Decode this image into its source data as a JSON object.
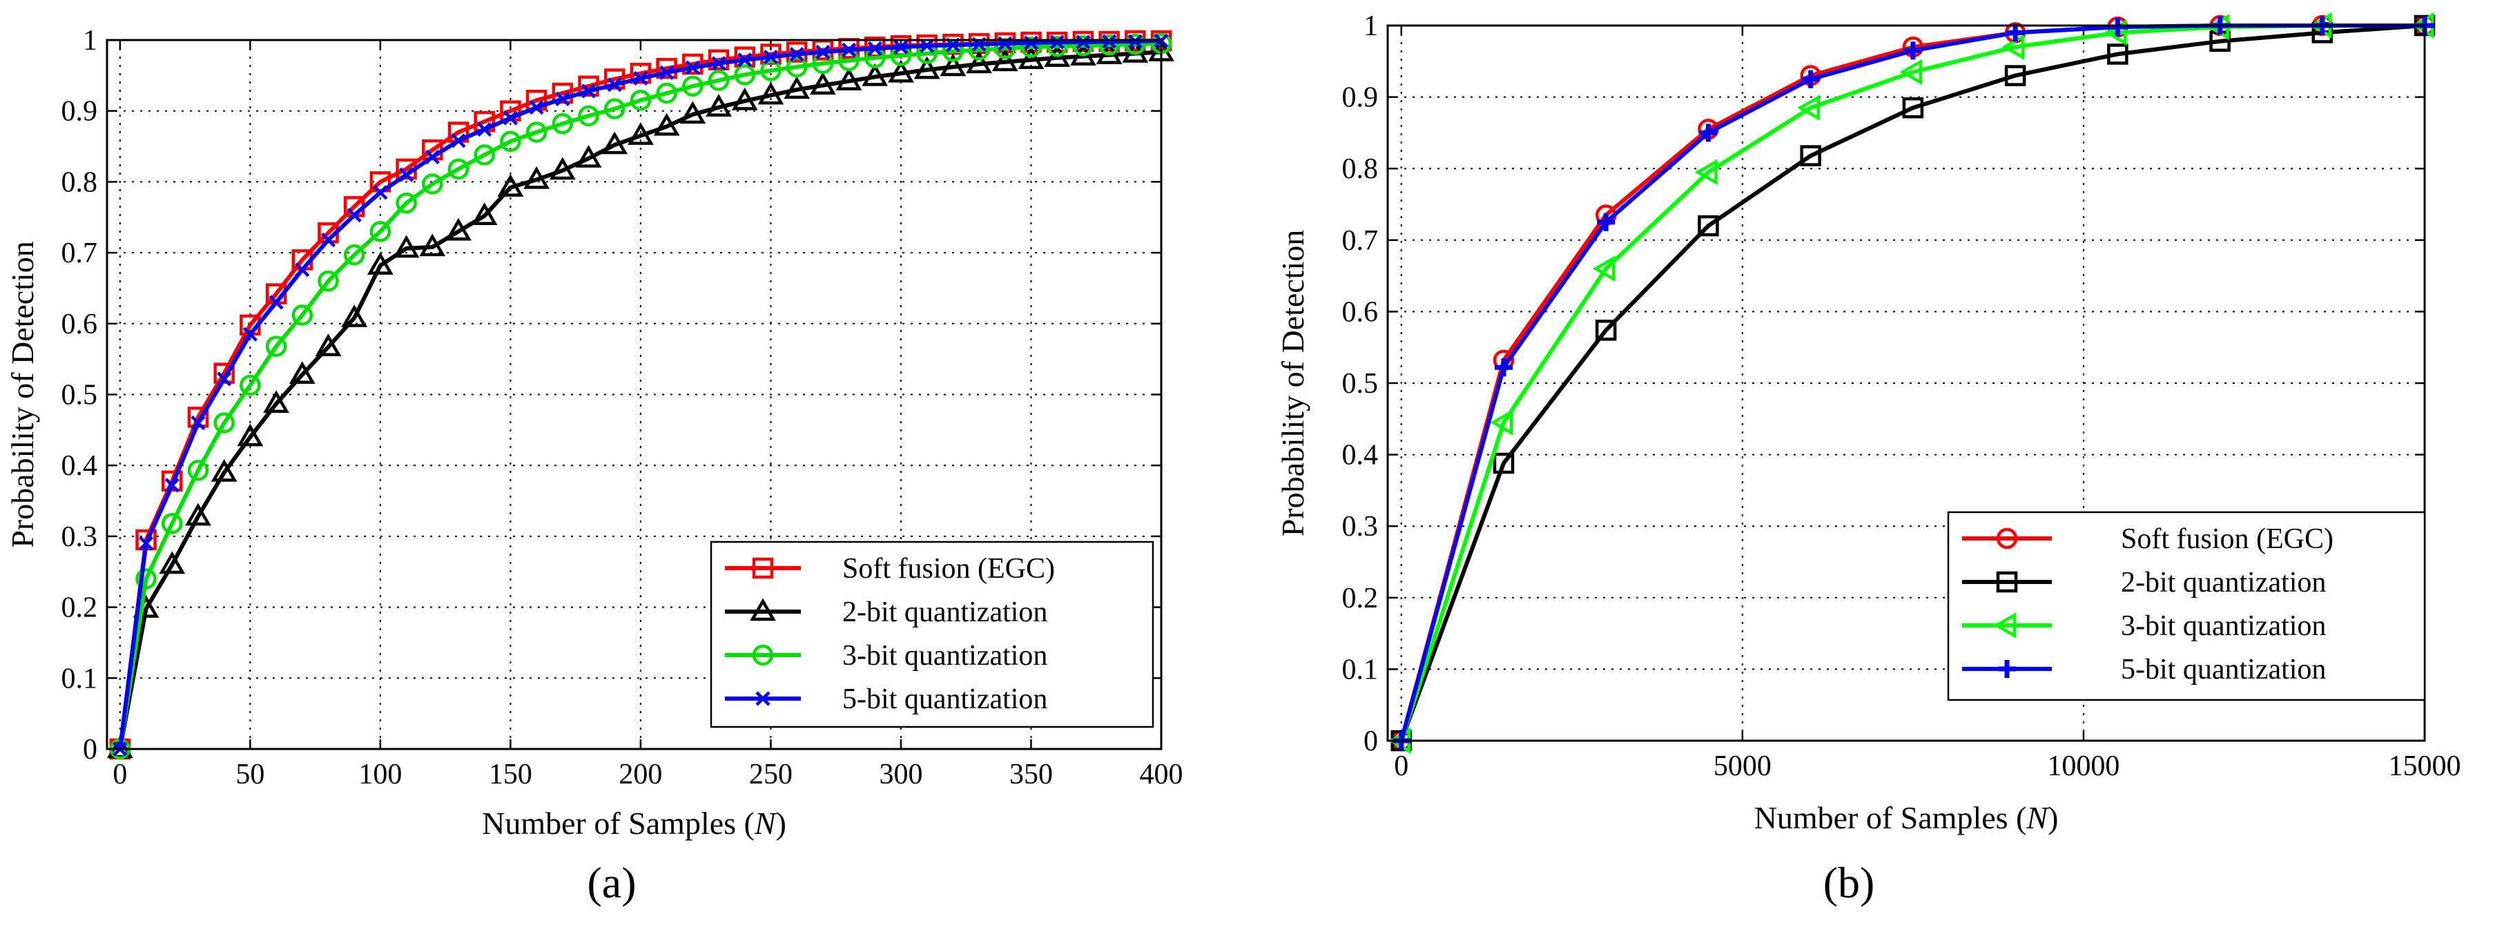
{
  "chart_data": [
    {
      "type": "line",
      "panel_label": "(a)",
      "xlabel_prefix": "Number of Samples (",
      "xlabel_var": "N",
      "xlabel_suffix": ")",
      "ylabel": "Probability of Detection",
      "xlim": [
        -5,
        400
      ],
      "ylim": [
        0,
        1
      ],
      "xticks": [
        0,
        50,
        100,
        150,
        200,
        250,
        300,
        350,
        400
      ],
      "yticks": [
        0,
        0.1,
        0.2,
        0.3,
        0.4,
        0.5,
        0.6,
        0.7,
        0.8,
        0.9,
        1
      ],
      "ytick_labels": [
        "0",
        "0.1",
        "0.2",
        "0.3",
        "0.4",
        "0.5",
        "0.6",
        "0.7",
        "0.8",
        "0.9",
        "1"
      ],
      "grid": true,
      "legend_position": "bottom-right",
      "x": [
        0,
        10,
        20,
        30,
        40,
        50,
        60,
        70,
        80,
        90,
        100,
        110,
        120,
        130,
        140,
        150,
        160,
        170,
        180,
        190,
        200,
        210,
        220,
        230,
        240,
        250,
        260,
        270,
        280,
        290,
        300,
        310,
        320,
        330,
        340,
        350,
        360,
        370,
        380,
        390,
        400
      ],
      "series": [
        {
          "name": "Soft fusion (EGC)",
          "color": "#ff0000",
          "marker": "square",
          "values": [
            0,
            0.295,
            0.378,
            0.468,
            0.53,
            0.598,
            0.642,
            0.69,
            0.728,
            0.765,
            0.8,
            0.818,
            0.845,
            0.87,
            0.885,
            0.9,
            0.915,
            0.925,
            0.935,
            0.945,
            0.953,
            0.96,
            0.966,
            0.972,
            0.976,
            0.98,
            0.983,
            0.986,
            0.988,
            0.99,
            0.992,
            0.993,
            0.994,
            0.995,
            0.996,
            0.997,
            0.997,
            0.998,
            0.998,
            0.999,
            0.999
          ]
        },
        {
          "name": "2-bit quantization",
          "color": "#000000",
          "marker": "triangle-up",
          "values": [
            0,
            0.198,
            0.26,
            0.328,
            0.39,
            0.44,
            0.487,
            0.528,
            0.567,
            0.608,
            0.682,
            0.706,
            0.708,
            0.73,
            0.752,
            0.792,
            0.803,
            0.816,
            0.833,
            0.852,
            0.865,
            0.878,
            0.895,
            0.905,
            0.914,
            0.922,
            0.93,
            0.936,
            0.942,
            0.948,
            0.953,
            0.958,
            0.962,
            0.966,
            0.969,
            0.972,
            0.975,
            0.977,
            0.979,
            0.981,
            0.983
          ]
        },
        {
          "name": "3-bit quantization",
          "color": "#00e000",
          "marker": "circle",
          "values": [
            0,
            0.24,
            0.318,
            0.393,
            0.46,
            0.513,
            0.568,
            0.612,
            0.66,
            0.697,
            0.73,
            0.77,
            0.797,
            0.818,
            0.838,
            0.857,
            0.87,
            0.882,
            0.893,
            0.903,
            0.915,
            0.925,
            0.935,
            0.943,
            0.951,
            0.957,
            0.962,
            0.967,
            0.971,
            0.975,
            0.978,
            0.981,
            0.984,
            0.986,
            0.988,
            0.99,
            0.991,
            0.992,
            0.993,
            0.994,
            0.995
          ]
        },
        {
          "name": "5-bit quantization",
          "color": "#0000ff",
          "marker": "x",
          "values": [
            0,
            0.29,
            0.372,
            0.46,
            0.522,
            0.585,
            0.63,
            0.676,
            0.718,
            0.753,
            0.785,
            0.81,
            0.835,
            0.858,
            0.874,
            0.89,
            0.905,
            0.917,
            0.928,
            0.937,
            0.946,
            0.954,
            0.961,
            0.967,
            0.972,
            0.976,
            0.98,
            0.983,
            0.986,
            0.988,
            0.99,
            0.992,
            0.993,
            0.994,
            0.995,
            0.996,
            0.997,
            0.997,
            0.998,
            0.998,
            0.999
          ]
        }
      ]
    },
    {
      "type": "line",
      "panel_label": "(b)",
      "xlabel_prefix": "Number of Samples (",
      "xlabel_var": "N",
      "xlabel_suffix": ")",
      "ylabel": "Probability of Detection",
      "xlim": [
        -200,
        15000
      ],
      "ylim": [
        0,
        1
      ],
      "xticks": [
        0,
        5000,
        10000,
        15000
      ],
      "yticks": [
        0,
        0.1,
        0.2,
        0.3,
        0.4,
        0.5,
        0.6,
        0.7,
        0.8,
        0.9,
        1
      ],
      "ytick_labels": [
        "0",
        "0.1",
        "0.2",
        "0.3",
        "0.4",
        "0.5",
        "0.6",
        "0.7",
        "0.8",
        "0.9",
        "1"
      ],
      "grid": true,
      "legend_position": "bottom-right",
      "x": [
        0,
        1500,
        3000,
        4500,
        6000,
        7500,
        9000,
        10500,
        12000,
        13500,
        15000
      ],
      "series": [
        {
          "name": "Soft fusion (EGC)",
          "color": "#ff0000",
          "marker": "circle",
          "values": [
            0,
            0.532,
            0.735,
            0.855,
            0.93,
            0.97,
            0.99,
            0.998,
            1.0,
            1.0,
            1.0
          ]
        },
        {
          "name": "2-bit quantization",
          "color": "#000000",
          "marker": "square",
          "values": [
            0,
            0.388,
            0.574,
            0.72,
            0.818,
            0.885,
            0.93,
            0.96,
            0.978,
            0.99,
            1.0
          ]
        },
        {
          "name": "3-bit quantization",
          "color": "#00ff00",
          "marker": "triangle-left",
          "values": [
            0,
            0.445,
            0.66,
            0.795,
            0.885,
            0.935,
            0.97,
            0.99,
            0.998,
            1.0,
            1.0
          ]
        },
        {
          "name": "5-bit quantization",
          "color": "#0000ff",
          "marker": "plus",
          "values": [
            0,
            0.522,
            0.725,
            0.85,
            0.925,
            0.965,
            0.99,
            0.998,
            1.0,
            1.0,
            1.0
          ]
        }
      ]
    }
  ]
}
